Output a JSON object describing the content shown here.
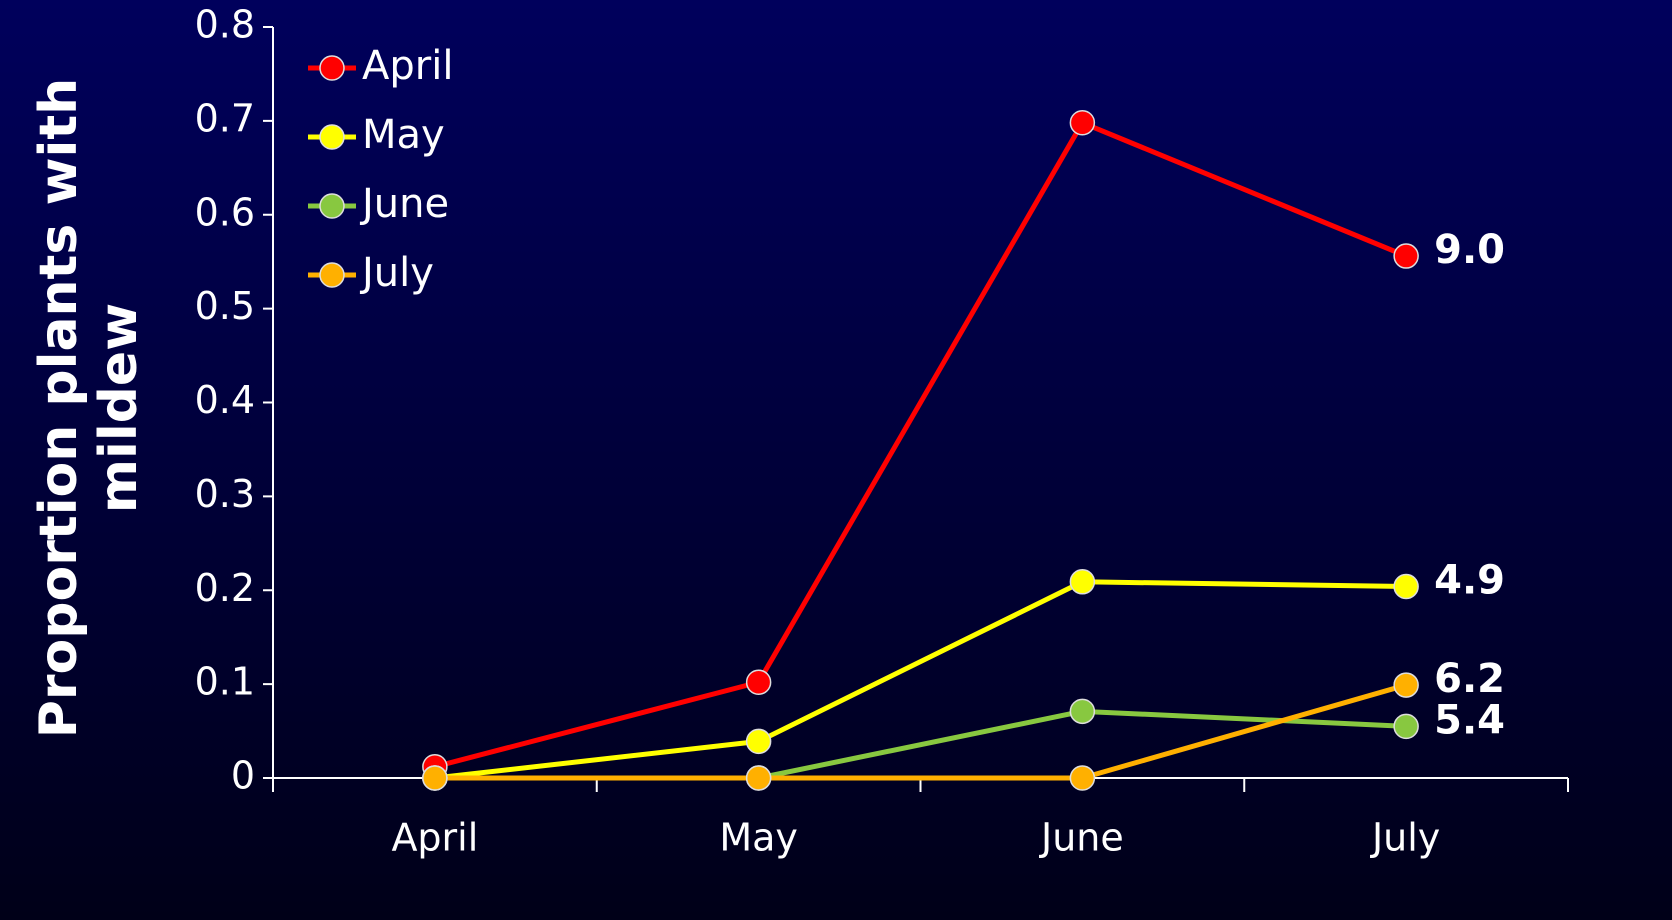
{
  "chart_data": {
    "type": "line",
    "ylabel": [
      "Proportion plants with",
      "mildew"
    ],
    "categories": [
      "April",
      "May",
      "June",
      "July"
    ],
    "series": [
      {
        "name": "April",
        "color": "#ff0000",
        "values": [
          0.012,
          0.102,
          0.698,
          0.556
        ]
      },
      {
        "name": "May",
        "color": "#ffff00",
        "values": [
          0,
          0.039,
          0.209,
          0.204
        ]
      },
      {
        "name": "June",
        "color": "#88c840",
        "values": [
          0,
          0,
          0.071,
          0.055
        ]
      },
      {
        "name": "July",
        "color": "#ffb000",
        "values": [
          0,
          0,
          0,
          0.099
        ]
      }
    ],
    "end_labels": [
      "9.0",
      "4.9",
      "5.4",
      "6.2"
    ],
    "ylim": [
      0,
      0.8
    ],
    "yticks": [
      0,
      0.1,
      0.2,
      0.3,
      0.4,
      0.5,
      0.6,
      0.7,
      0.8
    ],
    "grid": false,
    "legend": "top-left"
  }
}
